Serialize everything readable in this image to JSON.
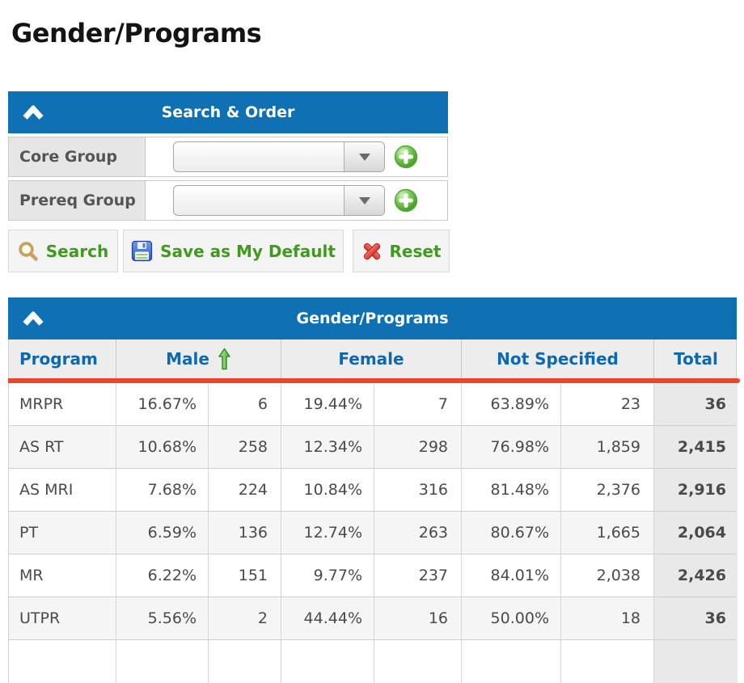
{
  "page": {
    "title": "Gender/Programs"
  },
  "colors": {
    "header_blue": "#1070B4",
    "column_header_blue": "#0E68B0",
    "red_underline": "#E8462D",
    "button_text_green": "#3F9A1D",
    "sort_arrow_green": "#57B13E"
  },
  "search_panel": {
    "title": "Search & Order",
    "fields": [
      {
        "label": "Core Group",
        "value": ""
      },
      {
        "label": "Prereq Group",
        "value": ""
      }
    ],
    "buttons": {
      "search": "Search",
      "save": "Save as My Default",
      "reset": "Reset"
    }
  },
  "table": {
    "title": "Gender/Programs",
    "columns": {
      "program": "Program",
      "male": "Male",
      "female": "Female",
      "not_specified": "Not Specified",
      "total": "Total"
    },
    "sorted_by": "Male",
    "sort_direction": "ascending",
    "rows": [
      {
        "program": "MRPR",
        "male_pct": "16.67%",
        "male_n": "6",
        "female_pct": "19.44%",
        "female_n": "7",
        "ns_pct": "63.89%",
        "ns_n": "23",
        "total": "36"
      },
      {
        "program": "AS RT",
        "male_pct": "10.68%",
        "male_n": "258",
        "female_pct": "12.34%",
        "female_n": "298",
        "ns_pct": "76.98%",
        "ns_n": "1,859",
        "total": "2,415"
      },
      {
        "program": "AS MRI",
        "male_pct": "7.68%",
        "male_n": "224",
        "female_pct": "10.84%",
        "female_n": "316",
        "ns_pct": "81.48%",
        "ns_n": "2,376",
        "total": "2,916"
      },
      {
        "program": "PT",
        "male_pct": "6.59%",
        "male_n": "136",
        "female_pct": "12.74%",
        "female_n": "263",
        "ns_pct": "80.67%",
        "ns_n": "1,665",
        "total": "2,064"
      },
      {
        "program": "MR",
        "male_pct": "6.22%",
        "male_n": "151",
        "female_pct": "9.77%",
        "female_n": "237",
        "ns_pct": "84.01%",
        "ns_n": "2,038",
        "total": "2,426"
      },
      {
        "program": "UTPR",
        "male_pct": "5.56%",
        "male_n": "2",
        "female_pct": "44.44%",
        "female_n": "16",
        "ns_pct": "50.00%",
        "ns_n": "18",
        "total": "36"
      }
    ]
  },
  "icons": {
    "collapse": "chevron-up",
    "dropdown": "caret-down",
    "add": "green-plus-circle",
    "search": "magnifier",
    "save": "floppy-disk",
    "reset": "red-x",
    "sort_asc": "green-up-arrow"
  }
}
